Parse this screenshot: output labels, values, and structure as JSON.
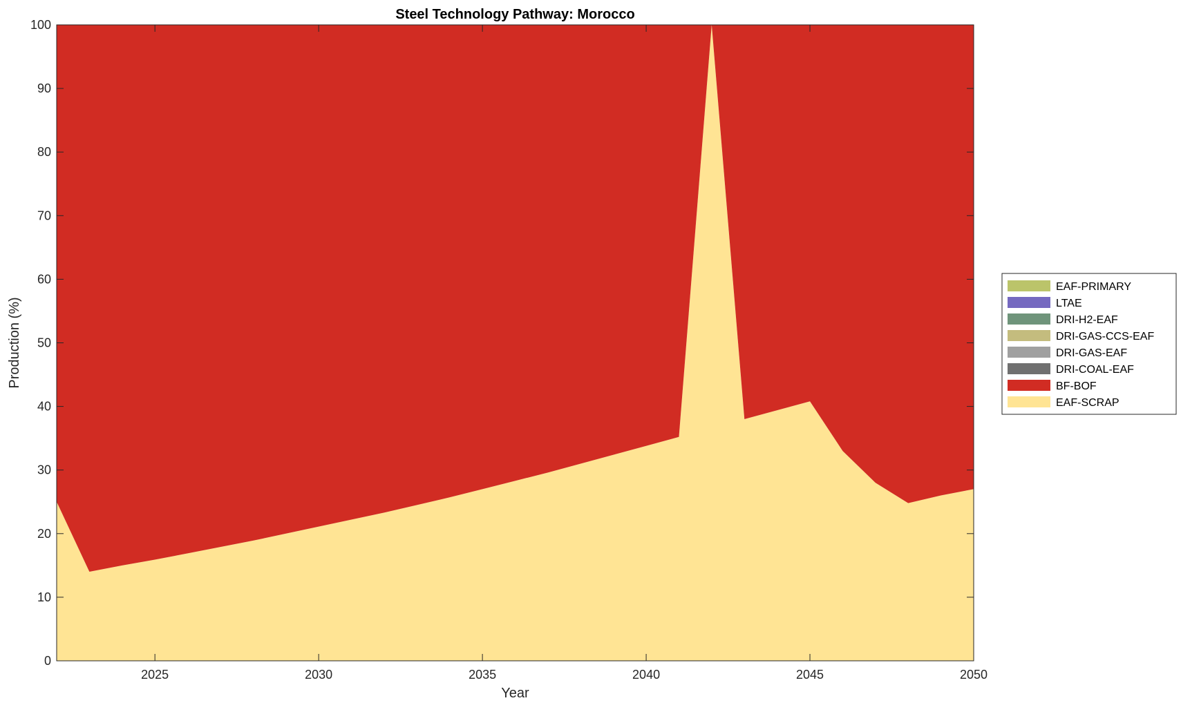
{
  "chart_data": {
    "type": "area",
    "title": "Steel Technology Pathway: Morocco",
    "xlabel": "Year",
    "ylabel": "Production (%)",
    "xlim": [
      2022,
      2050
    ],
    "ylim": [
      0,
      100
    ],
    "xticks": [
      2025,
      2030,
      2035,
      2040,
      2045,
      2050
    ],
    "yticks": [
      0,
      10,
      20,
      30,
      40,
      50,
      60,
      70,
      80,
      90,
      100
    ],
    "grid": false,
    "legend_position": "right",
    "x": [
      2022,
      2023,
      2024,
      2025,
      2026,
      2027,
      2028,
      2029,
      2030,
      2031,
      2032,
      2033,
      2034,
      2035,
      2036,
      2037,
      2038,
      2039,
      2040,
      2041,
      2042,
      2043,
      2044,
      2045,
      2046,
      2047,
      2048,
      2049,
      2050
    ],
    "series": [
      {
        "name": "EAF-SCRAP",
        "color": "#FFE494",
        "values": [
          25,
          14,
          15,
          15.9,
          16.9,
          17.9,
          18.9,
          20,
          21.1,
          22.2,
          23.3,
          24.5,
          25.7,
          27,
          28.3,
          29.6,
          31,
          32.4,
          33.8,
          35.2,
          100,
          38,
          39.4,
          40.8,
          33,
          28,
          24.8,
          26,
          27
        ]
      },
      {
        "name": "BF-BOF",
        "color": "#D12C23",
        "values": [
          75,
          86,
          85,
          84.1,
          83.1,
          82.1,
          81.1,
          80,
          78.9,
          77.8,
          76.7,
          75.5,
          74.3,
          73,
          71.7,
          70.4,
          69,
          67.6,
          66.2,
          64.8,
          0,
          62,
          60.6,
          59.2,
          67,
          72,
          75.2,
          74,
          73
        ]
      },
      {
        "name": "DRI-COAL-EAF",
        "color": "#707070",
        "values": [
          0,
          0,
          0,
          0,
          0,
          0,
          0,
          0,
          0,
          0,
          0,
          0,
          0,
          0,
          0,
          0,
          0,
          0,
          0,
          0,
          0,
          0,
          0,
          0,
          0,
          0,
          0,
          0,
          0
        ]
      },
      {
        "name": "DRI-GAS-EAF",
        "color": "#A0A0A0",
        "values": [
          0,
          0,
          0,
          0,
          0,
          0,
          0,
          0,
          0,
          0,
          0,
          0,
          0,
          0,
          0,
          0,
          0,
          0,
          0,
          0,
          0,
          0,
          0,
          0,
          0,
          0,
          0,
          0,
          0
        ]
      },
      {
        "name": "DRI-GAS-CCS-EAF",
        "color": "#C4BC7E",
        "values": [
          0,
          0,
          0,
          0,
          0,
          0,
          0,
          0,
          0,
          0,
          0,
          0,
          0,
          0,
          0,
          0,
          0,
          0,
          0,
          0,
          0,
          0,
          0,
          0,
          0,
          0,
          0,
          0,
          0
        ]
      },
      {
        "name": "DRI-H2-EAF",
        "color": "#6F947B",
        "values": [
          0,
          0,
          0,
          0,
          0,
          0,
          0,
          0,
          0,
          0,
          0,
          0,
          0,
          0,
          0,
          0,
          0,
          0,
          0,
          0,
          0,
          0,
          0,
          0,
          0,
          0,
          0,
          0,
          0
        ]
      },
      {
        "name": "LTAE",
        "color": "#7569C0",
        "values": [
          0,
          0,
          0,
          0,
          0,
          0,
          0,
          0,
          0,
          0,
          0,
          0,
          0,
          0,
          0,
          0,
          0,
          0,
          0,
          0,
          0,
          0,
          0,
          0,
          0,
          0,
          0,
          0,
          0
        ]
      },
      {
        "name": "EAF-PRIMARY",
        "color": "#BBC46A",
        "values": [
          0,
          0,
          0,
          0,
          0,
          0,
          0,
          0,
          0,
          0,
          0,
          0,
          0,
          0,
          0,
          0,
          0,
          0,
          0,
          0,
          0,
          0,
          0,
          0,
          0,
          0,
          0,
          0,
          0
        ]
      }
    ],
    "legend_order": [
      "EAF-PRIMARY",
      "LTAE",
      "DRI-H2-EAF",
      "DRI-GAS-CCS-EAF",
      "DRI-GAS-EAF",
      "DRI-COAL-EAF",
      "BF-BOF",
      "EAF-SCRAP"
    ]
  }
}
